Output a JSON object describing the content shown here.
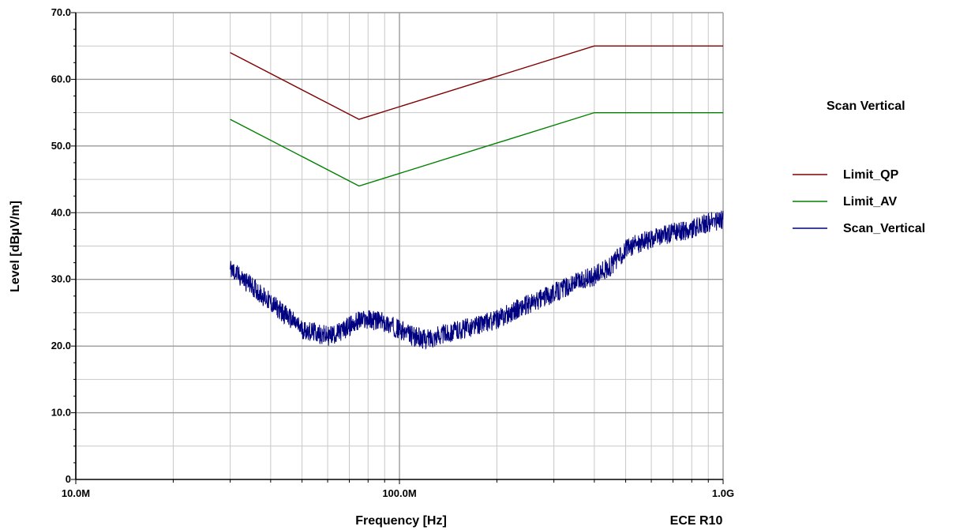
{
  "chart_data": {
    "type": "line",
    "title": "Scan Vertical",
    "corner_label": "ECE R10",
    "xlabel": "Frequency [Hz]",
    "ylabel": "Level [dBµV/m]",
    "x_scale": "log",
    "xlim": [
      10000000,
      1000000000
    ],
    "ylim": [
      0,
      70
    ],
    "grid": true,
    "legend_position": "right",
    "x_ticks": [
      {
        "value": 10000000,
        "label": "10.0M"
      },
      {
        "value": 100000000,
        "label": "100.0M"
      },
      {
        "value": 1000000000,
        "label": "1.0G"
      }
    ],
    "y_ticks": [
      {
        "value": 0,
        "label": "0"
      },
      {
        "value": 10,
        "label": "10.0"
      },
      {
        "value": 20,
        "label": "20.0"
      },
      {
        "value": 30,
        "label": "30.0"
      },
      {
        "value": 40,
        "label": "40.0"
      },
      {
        "value": 50,
        "label": "50.0"
      },
      {
        "value": 60,
        "label": "60.0"
      },
      {
        "value": 70,
        "label": "70.0"
      }
    ],
    "series": [
      {
        "name": "Limit_QP",
        "color": "#800000",
        "x": [
          30000000,
          75000000,
          400000000,
          1000000000
        ],
        "y": [
          64,
          54,
          65,
          65
        ]
      },
      {
        "name": "Limit_AV",
        "color": "#008000",
        "x": [
          30000000,
          75000000,
          400000000,
          1000000000
        ],
        "y": [
          54,
          44,
          55,
          55
        ]
      },
      {
        "name": "Scan_Vertical",
        "color": "#000080",
        "noise_band_db": 1.5,
        "x": [
          30000000,
          35000000,
          40000000,
          45000000,
          50000000,
          55000000,
          60000000,
          65000000,
          70000000,
          75000000,
          80000000,
          85000000,
          90000000,
          100000000,
          110000000,
          120000000,
          130000000,
          150000000,
          170000000,
          200000000,
          230000000,
          260000000,
          300000000,
          350000000,
          400000000,
          450000000,
          500000000,
          550000000,
          600000000,
          700000000,
          800000000,
          900000000,
          1000000000
        ],
        "y": [
          31.5,
          29.0,
          26.5,
          24.5,
          22.5,
          22.0,
          21.5,
          22.0,
          23.0,
          23.8,
          24.0,
          23.8,
          23.5,
          22.5,
          21.5,
          21.0,
          21.5,
          22.3,
          23.0,
          24.0,
          25.5,
          26.5,
          28.0,
          29.5,
          30.5,
          32.0,
          34.5,
          35.5,
          36.0,
          37.0,
          37.5,
          38.5,
          39.0
        ]
      }
    ]
  }
}
